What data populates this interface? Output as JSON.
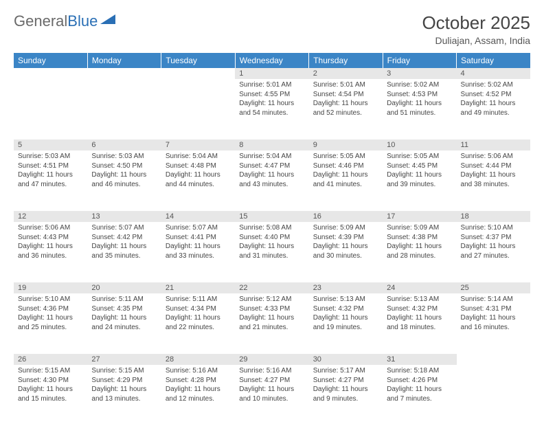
{
  "logo": {
    "text1": "General",
    "text2": "Blue"
  },
  "title": "October 2025",
  "location": "Duliajan, Assam, India",
  "headerColor": "#3b85c6",
  "dayNames": [
    "Sunday",
    "Monday",
    "Tuesday",
    "Wednesday",
    "Thursday",
    "Friday",
    "Saturday"
  ],
  "weeks": [
    {
      "days": [
        {
          "num": "",
          "sunrise": "",
          "sunset": "",
          "daylight": ""
        },
        {
          "num": "",
          "sunrise": "",
          "sunset": "",
          "daylight": ""
        },
        {
          "num": "",
          "sunrise": "",
          "sunset": "",
          "daylight": ""
        },
        {
          "num": "1",
          "sunrise": "Sunrise: 5:01 AM",
          "sunset": "Sunset: 4:55 PM",
          "daylight": "Daylight: 11 hours and 54 minutes."
        },
        {
          "num": "2",
          "sunrise": "Sunrise: 5:01 AM",
          "sunset": "Sunset: 4:54 PM",
          "daylight": "Daylight: 11 hours and 52 minutes."
        },
        {
          "num": "3",
          "sunrise": "Sunrise: 5:02 AM",
          "sunset": "Sunset: 4:53 PM",
          "daylight": "Daylight: 11 hours and 51 minutes."
        },
        {
          "num": "4",
          "sunrise": "Sunrise: 5:02 AM",
          "sunset": "Sunset: 4:52 PM",
          "daylight": "Daylight: 11 hours and 49 minutes."
        }
      ]
    },
    {
      "days": [
        {
          "num": "5",
          "sunrise": "Sunrise: 5:03 AM",
          "sunset": "Sunset: 4:51 PM",
          "daylight": "Daylight: 11 hours and 47 minutes."
        },
        {
          "num": "6",
          "sunrise": "Sunrise: 5:03 AM",
          "sunset": "Sunset: 4:50 PM",
          "daylight": "Daylight: 11 hours and 46 minutes."
        },
        {
          "num": "7",
          "sunrise": "Sunrise: 5:04 AM",
          "sunset": "Sunset: 4:48 PM",
          "daylight": "Daylight: 11 hours and 44 minutes."
        },
        {
          "num": "8",
          "sunrise": "Sunrise: 5:04 AM",
          "sunset": "Sunset: 4:47 PM",
          "daylight": "Daylight: 11 hours and 43 minutes."
        },
        {
          "num": "9",
          "sunrise": "Sunrise: 5:05 AM",
          "sunset": "Sunset: 4:46 PM",
          "daylight": "Daylight: 11 hours and 41 minutes."
        },
        {
          "num": "10",
          "sunrise": "Sunrise: 5:05 AM",
          "sunset": "Sunset: 4:45 PM",
          "daylight": "Daylight: 11 hours and 39 minutes."
        },
        {
          "num": "11",
          "sunrise": "Sunrise: 5:06 AM",
          "sunset": "Sunset: 4:44 PM",
          "daylight": "Daylight: 11 hours and 38 minutes."
        }
      ]
    },
    {
      "days": [
        {
          "num": "12",
          "sunrise": "Sunrise: 5:06 AM",
          "sunset": "Sunset: 4:43 PM",
          "daylight": "Daylight: 11 hours and 36 minutes."
        },
        {
          "num": "13",
          "sunrise": "Sunrise: 5:07 AM",
          "sunset": "Sunset: 4:42 PM",
          "daylight": "Daylight: 11 hours and 35 minutes."
        },
        {
          "num": "14",
          "sunrise": "Sunrise: 5:07 AM",
          "sunset": "Sunset: 4:41 PM",
          "daylight": "Daylight: 11 hours and 33 minutes."
        },
        {
          "num": "15",
          "sunrise": "Sunrise: 5:08 AM",
          "sunset": "Sunset: 4:40 PM",
          "daylight": "Daylight: 11 hours and 31 minutes."
        },
        {
          "num": "16",
          "sunrise": "Sunrise: 5:09 AM",
          "sunset": "Sunset: 4:39 PM",
          "daylight": "Daylight: 11 hours and 30 minutes."
        },
        {
          "num": "17",
          "sunrise": "Sunrise: 5:09 AM",
          "sunset": "Sunset: 4:38 PM",
          "daylight": "Daylight: 11 hours and 28 minutes."
        },
        {
          "num": "18",
          "sunrise": "Sunrise: 5:10 AM",
          "sunset": "Sunset: 4:37 PM",
          "daylight": "Daylight: 11 hours and 27 minutes."
        }
      ]
    },
    {
      "days": [
        {
          "num": "19",
          "sunrise": "Sunrise: 5:10 AM",
          "sunset": "Sunset: 4:36 PM",
          "daylight": "Daylight: 11 hours and 25 minutes."
        },
        {
          "num": "20",
          "sunrise": "Sunrise: 5:11 AM",
          "sunset": "Sunset: 4:35 PM",
          "daylight": "Daylight: 11 hours and 24 minutes."
        },
        {
          "num": "21",
          "sunrise": "Sunrise: 5:11 AM",
          "sunset": "Sunset: 4:34 PM",
          "daylight": "Daylight: 11 hours and 22 minutes."
        },
        {
          "num": "22",
          "sunrise": "Sunrise: 5:12 AM",
          "sunset": "Sunset: 4:33 PM",
          "daylight": "Daylight: 11 hours and 21 minutes."
        },
        {
          "num": "23",
          "sunrise": "Sunrise: 5:13 AM",
          "sunset": "Sunset: 4:32 PM",
          "daylight": "Daylight: 11 hours and 19 minutes."
        },
        {
          "num": "24",
          "sunrise": "Sunrise: 5:13 AM",
          "sunset": "Sunset: 4:32 PM",
          "daylight": "Daylight: 11 hours and 18 minutes."
        },
        {
          "num": "25",
          "sunrise": "Sunrise: 5:14 AM",
          "sunset": "Sunset: 4:31 PM",
          "daylight": "Daylight: 11 hours and 16 minutes."
        }
      ]
    },
    {
      "days": [
        {
          "num": "26",
          "sunrise": "Sunrise: 5:15 AM",
          "sunset": "Sunset: 4:30 PM",
          "daylight": "Daylight: 11 hours and 15 minutes."
        },
        {
          "num": "27",
          "sunrise": "Sunrise: 5:15 AM",
          "sunset": "Sunset: 4:29 PM",
          "daylight": "Daylight: 11 hours and 13 minutes."
        },
        {
          "num": "28",
          "sunrise": "Sunrise: 5:16 AM",
          "sunset": "Sunset: 4:28 PM",
          "daylight": "Daylight: 11 hours and 12 minutes."
        },
        {
          "num": "29",
          "sunrise": "Sunrise: 5:16 AM",
          "sunset": "Sunset: 4:27 PM",
          "daylight": "Daylight: 11 hours and 10 minutes."
        },
        {
          "num": "30",
          "sunrise": "Sunrise: 5:17 AM",
          "sunset": "Sunset: 4:27 PM",
          "daylight": "Daylight: 11 hours and 9 minutes."
        },
        {
          "num": "31",
          "sunrise": "Sunrise: 5:18 AM",
          "sunset": "Sunset: 4:26 PM",
          "daylight": "Daylight: 11 hours and 7 minutes."
        },
        {
          "num": "",
          "sunrise": "",
          "sunset": "",
          "daylight": ""
        }
      ]
    }
  ]
}
